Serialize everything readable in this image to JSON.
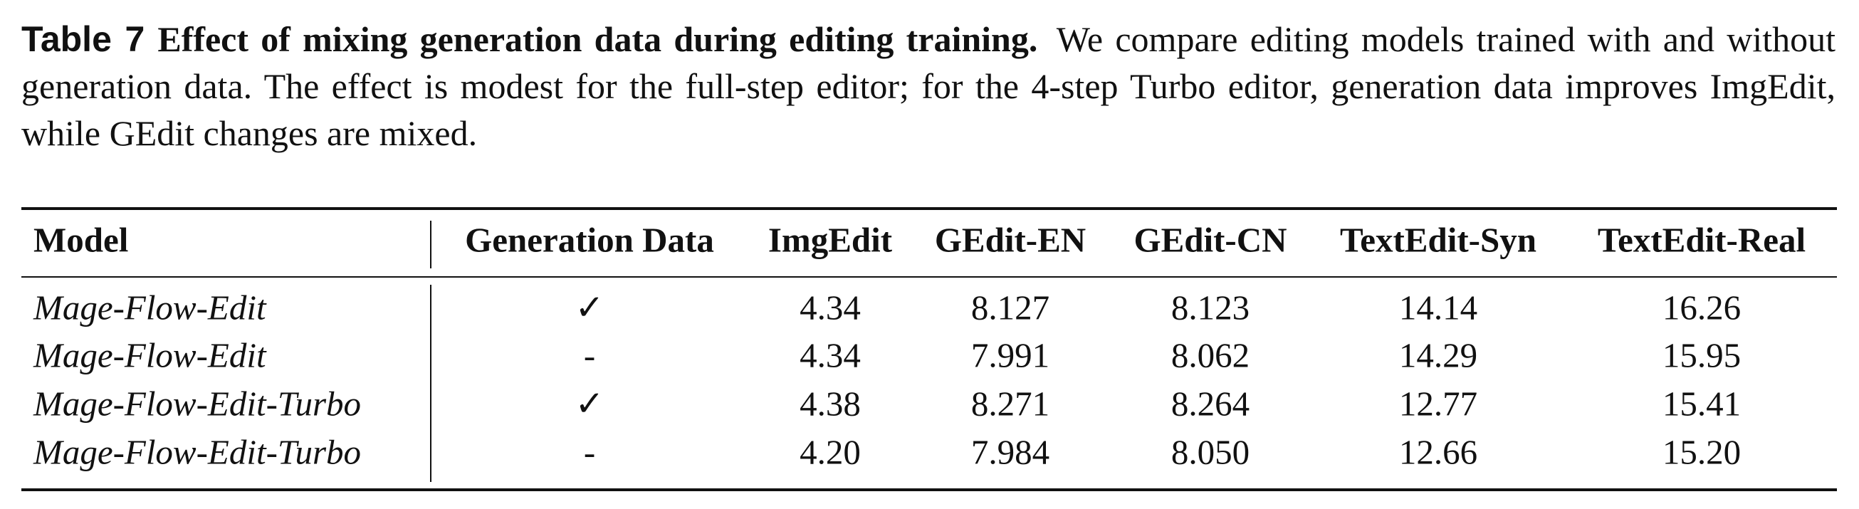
{
  "caption": {
    "label": "Table 7",
    "title": "Effect of mixing generation data during editing training.",
    "text": "We compare editing models trained with and without generation data. The effect is modest for the full-step editor; for the 4-step Turbo editor, generation data improves ImgEdit, while GEdit changes are mixed."
  },
  "table": {
    "columns": [
      "Model",
      "Generation Data",
      "ImgEdit",
      "GEdit-EN",
      "GEdit-CN",
      "TextEdit-Syn",
      "TextEdit-Real"
    ],
    "rows": [
      [
        "Mage-Flow-Edit",
        "✓",
        "4.34",
        "8.127",
        "8.123",
        "14.14",
        "16.26"
      ],
      [
        "Mage-Flow-Edit",
        "-",
        "4.34",
        "7.991",
        "8.062",
        "14.29",
        "15.95"
      ],
      [
        "Mage-Flow-Edit-Turbo",
        "✓",
        "4.38",
        "8.271",
        "8.264",
        "12.77",
        "15.41"
      ],
      [
        "Mage-Flow-Edit-Turbo",
        "-",
        "4.20",
        "7.984",
        "8.050",
        "12.66",
        "15.20"
      ]
    ]
  }
}
